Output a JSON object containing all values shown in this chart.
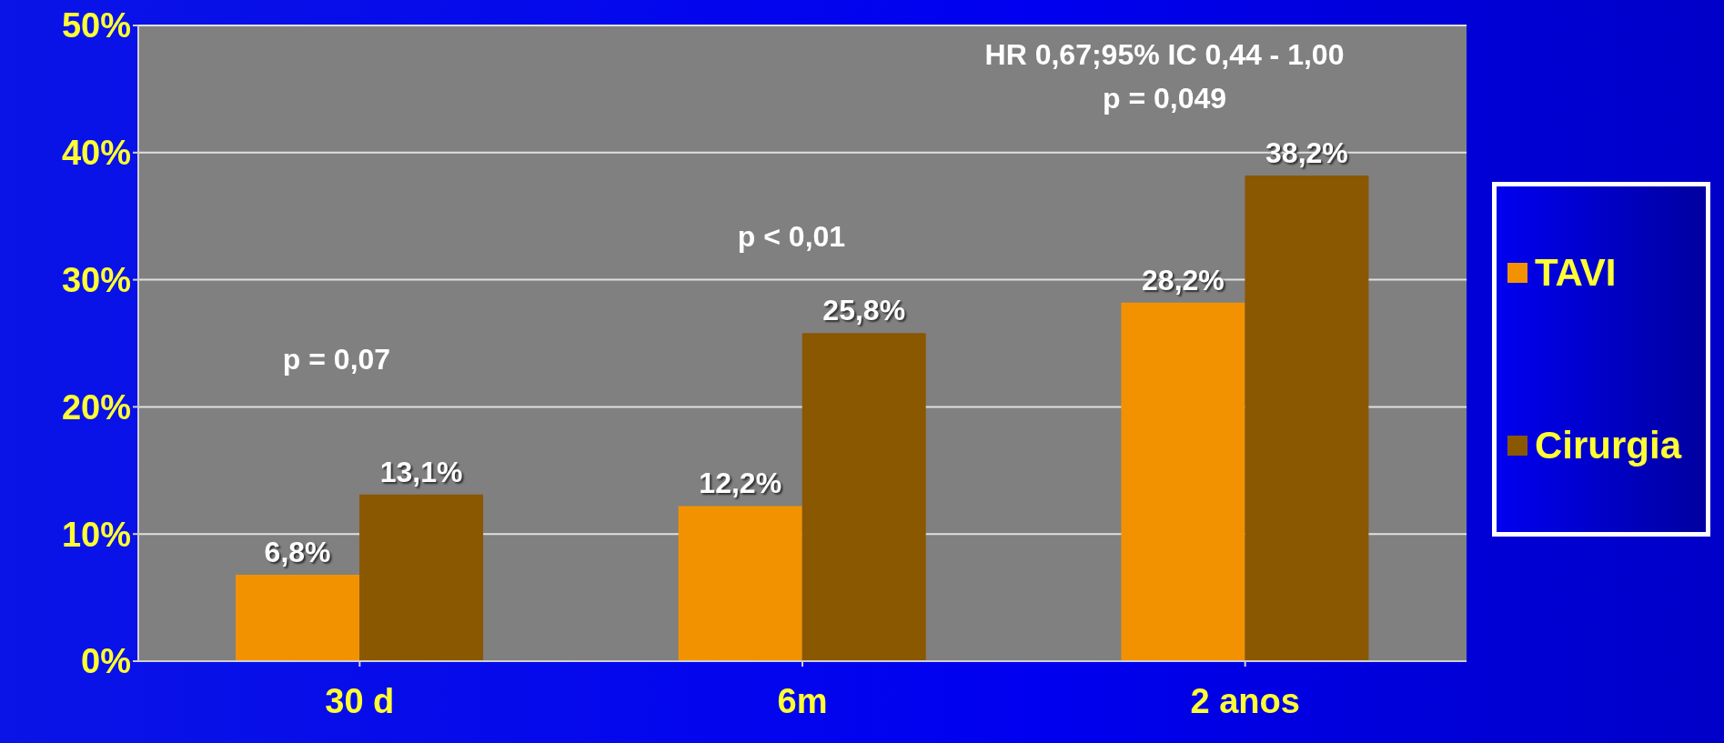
{
  "chart_data": {
    "type": "bar",
    "categories": [
      "30 d",
      "6m",
      "2 anos"
    ],
    "series": [
      {
        "name": "TAVI",
        "color": "#f39200",
        "values": [
          6.8,
          12.2,
          28.2
        ],
        "value_labels": [
          "6,8%",
          "12,2%",
          "28,2%"
        ]
      },
      {
        "name": "Cirurgia",
        "color": "#8a5800",
        "values": [
          13.1,
          25.8,
          38.2
        ],
        "value_labels": [
          "13,1%",
          "25,8%",
          "38,2%"
        ]
      }
    ],
    "ylim": [
      0,
      50
    ],
    "yticks": [
      {
        "value": 0,
        "label": "0%"
      },
      {
        "value": 10,
        "label": "10%"
      },
      {
        "value": 20,
        "label": "20%"
      },
      {
        "value": 30,
        "label": "30%"
      },
      {
        "value": 40,
        "label": "40%"
      },
      {
        "value": 50,
        "label": "50%"
      }
    ],
    "grid": "y",
    "legend": "right",
    "annotations": [
      "p = 0,07",
      "p < 0,01",
      "HR 0,67;95% IC 0,44 - 1,00",
      "p = 0,049"
    ]
  }
}
